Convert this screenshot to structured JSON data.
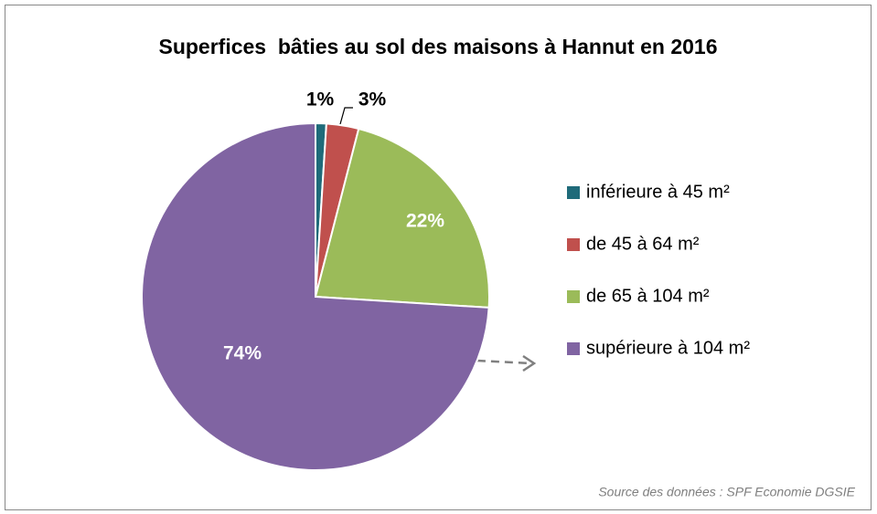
{
  "chart_data": {
    "type": "pie",
    "title": "Superfices  bâties au sol des maisons à Hannut en 2016",
    "categories": [
      "inférieure à 45 m²",
      "de 45 à 64 m²",
      "de 65 à 104 m²",
      "supérieure à 104 m²"
    ],
    "values": [
      1,
      3,
      22,
      74
    ],
    "value_labels": [
      "1%",
      "3%",
      "22%",
      "74%"
    ],
    "colors": [
      "#1f6b7a",
      "#c0504d",
      "#9bbb59",
      "#8064a2"
    ],
    "legend": "right",
    "source": "Source des données : SPF Economie DGSIE"
  }
}
